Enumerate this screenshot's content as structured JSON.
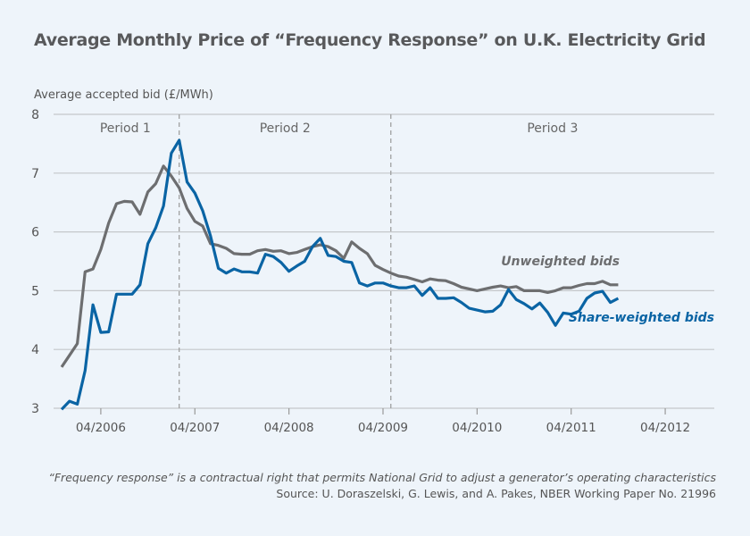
{
  "chart_data": {
    "type": "line",
    "title": "Average Monthly Price of “Frequency Response” on U.K. Electricity Grid",
    "ylabel": "Average accepted bid (£/MWh)",
    "xlabel": "",
    "ylim": [
      3,
      8
    ],
    "y_ticks": [
      "3",
      "4",
      "5",
      "6",
      "7",
      "8"
    ],
    "x_ticks": [
      {
        "label": "04/2006",
        "month": "2006-04"
      },
      {
        "label": "04/2007",
        "month": "2007-04"
      },
      {
        "label": "04/2008",
        "month": "2008-04"
      },
      {
        "label": "04/2009",
        "month": "2009-04"
      },
      {
        "label": "04/2010",
        "month": "2010-04"
      },
      {
        "label": "04/2011",
        "month": "2011-04"
      },
      {
        "label": "04/2012",
        "month": "2012-04"
      }
    ],
    "xlim": [
      "2005-11",
      "2012-08"
    ],
    "grid": "horizontal",
    "periods": [
      {
        "label": "Period 1"
      },
      {
        "label": "Period 2",
        "start": "2007-02"
      },
      {
        "label": "Period 3",
        "start": "2009-05"
      }
    ],
    "x": [
      "2005-11",
      "2005-12",
      "2006-01",
      "2006-02",
      "2006-03",
      "2006-04",
      "2006-05",
      "2006-06",
      "2006-07",
      "2006-08",
      "2006-09",
      "2006-10",
      "2006-11",
      "2006-12",
      "2007-01",
      "2007-02",
      "2007-03",
      "2007-04",
      "2007-05",
      "2007-06",
      "2007-07",
      "2007-08",
      "2007-09",
      "2007-10",
      "2007-11",
      "2007-12",
      "2008-01",
      "2008-02",
      "2008-03",
      "2008-04",
      "2008-05",
      "2008-06",
      "2008-07",
      "2008-08",
      "2008-09",
      "2008-10",
      "2008-11",
      "2008-12",
      "2009-01",
      "2009-02",
      "2009-03",
      "2009-04",
      "2009-05",
      "2009-06",
      "2009-07",
      "2009-08",
      "2009-09",
      "2009-10",
      "2009-11",
      "2009-12",
      "2010-01",
      "2010-02",
      "2010-03",
      "2010-04",
      "2010-05",
      "2010-06",
      "2010-07",
      "2010-08",
      "2010-09",
      "2010-10",
      "2010-11",
      "2010-12",
      "2011-01",
      "2011-02",
      "2011-03",
      "2011-04",
      "2011-05",
      "2011-06",
      "2011-07",
      "2011-08",
      "2011-09",
      "2011-10"
    ],
    "series": [
      {
        "name": "Unweighted bids",
        "color": "#6d6e70",
        "values": [
          3.7,
          3.9,
          4.1,
          5.32,
          5.37,
          5.7,
          6.15,
          6.48,
          6.52,
          6.51,
          6.3,
          6.68,
          6.82,
          7.12,
          6.95,
          6.75,
          6.4,
          6.18,
          6.1,
          5.8,
          5.77,
          5.72,
          5.63,
          5.62,
          5.62,
          5.68,
          5.7,
          5.67,
          5.68,
          5.63,
          5.65,
          5.7,
          5.75,
          5.78,
          5.75,
          5.68,
          5.55,
          5.83,
          5.72,
          5.63,
          5.43,
          5.36,
          5.3,
          5.25,
          5.23,
          5.19,
          5.15,
          5.2,
          5.18,
          5.17,
          5.12,
          5.06,
          5.03,
          5.0,
          5.03,
          5.06,
          5.08,
          5.05,
          5.07,
          5.0,
          5.0,
          5.0,
          4.97,
          5.0,
          5.05,
          5.05,
          5.09,
          5.12,
          5.12,
          5.16,
          5.1,
          5.1
        ]
      },
      {
        "name": "Share-weighted bids",
        "color": "#0a64a4",
        "values": [
          2.98,
          3.12,
          3.07,
          3.64,
          4.76,
          4.29,
          4.3,
          4.94,
          4.94,
          4.94,
          5.1,
          5.8,
          6.07,
          6.44,
          7.34,
          7.56,
          6.85,
          6.66,
          6.36,
          5.93,
          5.38,
          5.3,
          5.37,
          5.32,
          5.32,
          5.3,
          5.62,
          5.58,
          5.48,
          5.33,
          5.42,
          5.5,
          5.75,
          5.89,
          5.6,
          5.58,
          5.5,
          5.48,
          5.13,
          5.08,
          5.13,
          5.13,
          5.08,
          5.05,
          5.05,
          5.08,
          4.92,
          5.05,
          4.87,
          4.87,
          4.88,
          4.8,
          4.7,
          4.67,
          4.64,
          4.65,
          4.76,
          5.02,
          4.85,
          4.78,
          4.69,
          4.79,
          4.63,
          4.41,
          4.62,
          4.6,
          4.65,
          4.87,
          4.96,
          4.99,
          4.8,
          4.87
        ]
      }
    ]
  },
  "footnote": "“Frequency response” is a contractual right that permits National Grid to adjust a generator’s operating characteristics",
  "source": "Source: U. Doraszelski, G. Lewis, and A. Pakes, NBER Working Paper No. 21996"
}
